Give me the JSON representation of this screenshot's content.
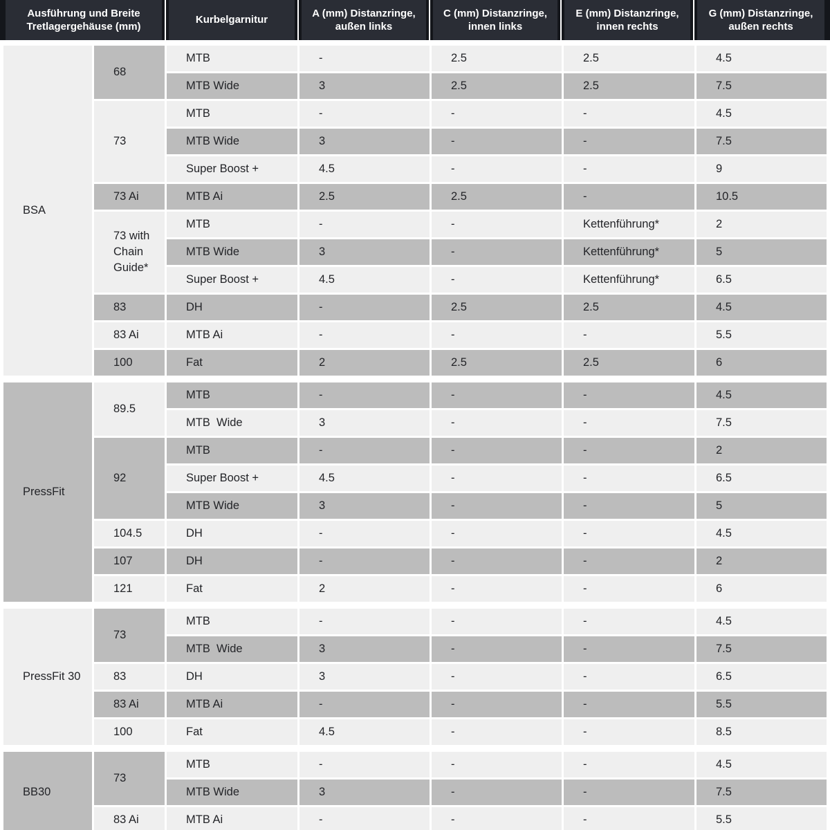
{
  "colors": {
    "header_bg": "#2a2d35",
    "header_edge": "#14161b",
    "header_text": "#ffffff",
    "row_light": "#efefef",
    "row_dark": "#bcbcbc",
    "text": "#232428"
  },
  "chart_data": {
    "type": "table",
    "columns": [
      "Ausführung und Breite Tretlagergehäuse (mm)",
      "Kurbelgarnitur",
      "A (mm) Distanzringe, außen links",
      "C (mm) Distanzringe, innen links",
      "E (mm) Distanzringe, innen rechts",
      "G (mm) Distanzringe, außen rechts"
    ],
    "value_columns_order": [
      "A",
      "C",
      "E",
      "G"
    ],
    "groups": [
      {
        "name": "BSA",
        "shade": "light",
        "widths": [
          {
            "label": "68",
            "shade": "dark",
            "rows": [
              {
                "crankset": "MTB",
                "shade": "light",
                "values": [
                  "-",
                  "2.5",
                  "2.5",
                  "4.5"
                ]
              },
              {
                "crankset": "MTB Wide",
                "shade": "dark",
                "values": [
                  "3",
                  "2.5",
                  "2.5",
                  "7.5"
                ]
              }
            ]
          },
          {
            "label": "73",
            "shade": "light",
            "rows": [
              {
                "crankset": "MTB",
                "shade": "light",
                "values": [
                  "-",
                  "-",
                  "-",
                  "4.5"
                ]
              },
              {
                "crankset": "MTB Wide",
                "shade": "dark",
                "values": [
                  "3",
                  "-",
                  "-",
                  "7.5"
                ]
              },
              {
                "crankset": "Super Boost +",
                "shade": "light",
                "values": [
                  "4.5",
                  "-",
                  "-",
                  "9"
                ]
              }
            ]
          },
          {
            "label": "73 Ai",
            "shade": "dark",
            "rows": [
              {
                "crankset": "MTB Ai",
                "shade": "dark",
                "values": [
                  "2.5",
                  "2.5",
                  "-",
                  "10.5"
                ]
              }
            ]
          },
          {
            "label": "73 with Chain Guide*",
            "shade": "light",
            "rows": [
              {
                "crankset": "MTB",
                "shade": "light",
                "values": [
                  "-",
                  "-",
                  "Kettenführung*",
                  "2"
                ]
              },
              {
                "crankset": "MTB Wide",
                "shade": "dark",
                "values": [
                  "3",
                  "-",
                  "Kettenführung*",
                  "5"
                ]
              },
              {
                "crankset": "Super Boost +",
                "shade": "light",
                "values": [
                  "4.5",
                  "-",
                  "Kettenführung*",
                  "6.5"
                ]
              }
            ]
          },
          {
            "label": "83",
            "shade": "dark",
            "rows": [
              {
                "crankset": "DH",
                "shade": "dark",
                "values": [
                  "-",
                  "2.5",
                  "2.5",
                  "4.5"
                ]
              }
            ]
          },
          {
            "label": "83 Ai",
            "shade": "light",
            "rows": [
              {
                "crankset": "MTB Ai",
                "shade": "light",
                "values": [
                  "-",
                  "-",
                  "-",
                  "5.5"
                ]
              }
            ]
          },
          {
            "label": "100",
            "shade": "dark",
            "rows": [
              {
                "crankset": "Fat",
                "shade": "dark",
                "values": [
                  "2",
                  "2.5",
                  "2.5",
                  "6"
                ]
              }
            ]
          }
        ]
      },
      {
        "name": "PressFit",
        "shade": "dark",
        "widths": [
          {
            "label": "89.5",
            "shade": "light",
            "rows": [
              {
                "crankset": "MTB",
                "shade": "dark",
                "values": [
                  "-",
                  "-",
                  "-",
                  "4.5"
                ]
              },
              {
                "crankset": "MTB  Wide",
                "shade": "light",
                "values": [
                  "3",
                  "-",
                  "-",
                  "7.5"
                ]
              }
            ]
          },
          {
            "label": "92",
            "shade": "dark",
            "rows": [
              {
                "crankset": "MTB",
                "shade": "dark",
                "values": [
                  "-",
                  "-",
                  "-",
                  "2"
                ]
              },
              {
                "crankset": "Super Boost +",
                "shade": "light",
                "values": [
                  "4.5",
                  "-",
                  "-",
                  "6.5"
                ]
              },
              {
                "crankset": "MTB Wide",
                "shade": "dark",
                "values": [
                  "3",
                  "-",
                  "-",
                  "5"
                ]
              }
            ]
          },
          {
            "label": "104.5",
            "shade": "light",
            "rows": [
              {
                "crankset": "DH",
                "shade": "light",
                "values": [
                  "-",
                  "-",
                  "-",
                  "4.5"
                ]
              }
            ]
          },
          {
            "label": "107",
            "shade": "dark",
            "rows": [
              {
                "crankset": "DH",
                "shade": "dark",
                "values": [
                  "-",
                  "-",
                  "-",
                  "2"
                ]
              }
            ]
          },
          {
            "label": "121",
            "shade": "light",
            "rows": [
              {
                "crankset": "Fat",
                "shade": "light",
                "values": [
                  "2",
                  "-",
                  "-",
                  "6"
                ]
              }
            ]
          }
        ]
      },
      {
        "name": "PressFit 30",
        "shade": "light",
        "widths": [
          {
            "label": "73",
            "shade": "dark",
            "rows": [
              {
                "crankset": "MTB",
                "shade": "light",
                "values": [
                  "-",
                  "-",
                  "-",
                  "4.5"
                ]
              },
              {
                "crankset": "MTB  Wide",
                "shade": "dark",
                "values": [
                  "3",
                  "-",
                  "-",
                  "7.5"
                ]
              }
            ]
          },
          {
            "label": "83",
            "shade": "light",
            "rows": [
              {
                "crankset": "DH",
                "shade": "light",
                "values": [
                  "3",
                  "-",
                  "-",
                  "6.5"
                ]
              }
            ]
          },
          {
            "label": "83 Ai",
            "shade": "dark",
            "rows": [
              {
                "crankset": "MTB Ai",
                "shade": "dark",
                "values": [
                  "-",
                  "-",
                  "-",
                  "5.5"
                ]
              }
            ]
          },
          {
            "label": "100",
            "shade": "light",
            "rows": [
              {
                "crankset": "Fat",
                "shade": "light",
                "values": [
                  "4.5",
                  "-",
                  "-",
                  "8.5"
                ]
              }
            ]
          }
        ]
      },
      {
        "name": "BB30",
        "shade": "dark",
        "widths": [
          {
            "label": "73",
            "shade": "dark",
            "rows": [
              {
                "crankset": "MTB",
                "shade": "light",
                "values": [
                  "-",
                  "-",
                  "-",
                  "4.5"
                ]
              },
              {
                "crankset": "MTB Wide",
                "shade": "dark",
                "values": [
                  "3",
                  "-",
                  "-",
                  "7.5"
                ]
              }
            ]
          },
          {
            "label": "83 Ai",
            "shade": "light",
            "rows": [
              {
                "crankset": "MTB Ai",
                "shade": "light",
                "values": [
                  "-",
                  "-",
                  "-",
                  "5.5"
                ]
              }
            ]
          }
        ]
      }
    ]
  }
}
